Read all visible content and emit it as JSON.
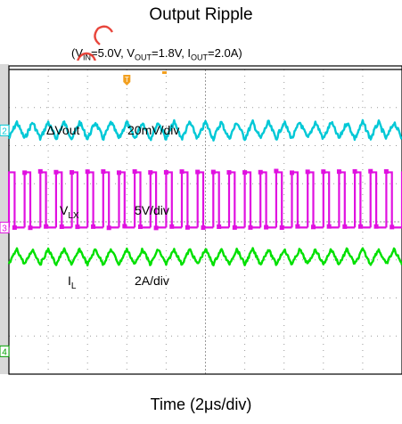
{
  "chart_data": {
    "type": "line",
    "title": "Output Ripple",
    "subtitle_parts": [
      "(V",
      "IN",
      "=5.0V, V",
      "OUT",
      "=1.8V, I",
      "OUT",
      "=2.0A)"
    ],
    "xlabel": "Time (2μs/div)",
    "ylabel": "",
    "grid": true,
    "x_divisions": 10,
    "y_divisions": 8,
    "time_per_div_us": 2,
    "switching_period_us": 0.8,
    "series": [
      {
        "name": "ΔVout",
        "label_main": "ΔVout",
        "label_sub": "",
        "scale": "20mV/div",
        "marker": "2",
        "color": "#00c8d6",
        "shape": "triangle",
        "center_div": 1.6,
        "amplitude_div": 0.22,
        "noise_div": 0.06
      },
      {
        "name": "VLX",
        "label_main": "V",
        "label_sub": "LX",
        "scale": "5V/div",
        "marker": "3",
        "color": "#e010e0",
        "shape": "square",
        "high_div": 2.7,
        "low_div": 4.15,
        "duty": 0.36,
        "noise_div": 0.05
      },
      {
        "name": "IL",
        "label_main": "I",
        "label_sub": "L",
        "scale": "2A/div",
        "marker": "",
        "color": "#00e000",
        "shape": "triangle",
        "center_div": 4.92,
        "amplitude_div": 0.2,
        "noise_div": 0.04
      }
    ],
    "channel4_marker": "4",
    "trigger_marker": "T"
  }
}
